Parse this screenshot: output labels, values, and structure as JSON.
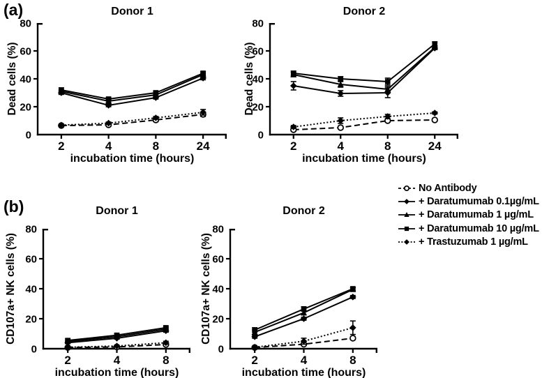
{
  "figure": {
    "panel_a_label": "(a)",
    "panel_b_label": "(b)"
  },
  "colors": {
    "ink": "#000000",
    "background": "#ffffff"
  },
  "legend": {
    "position": "right-middle",
    "items": [
      {
        "label": "No Antibody",
        "marker": "open-circle",
        "line": "dashed"
      },
      {
        "label": "+ Daratumumab 0.1µg/mL",
        "marker": "diamond",
        "line": "solid"
      },
      {
        "label": "+ Daratumumab 1 µg/mL",
        "marker": "triangle",
        "line": "solid"
      },
      {
        "label": "+ Daratumumab 10 µg/mL",
        "marker": "square",
        "line": "solid"
      },
      {
        "label": "+ Trastuzumab 1 µg/mL",
        "marker": "diamond",
        "line": "dotted"
      }
    ]
  },
  "chart_data": [
    {
      "id": "a-donor1",
      "type": "line",
      "panel": "a",
      "title": "Donor 1",
      "xlabel": "incubation time (hours)",
      "ylabel": "Dead cells (%)",
      "categories": [
        "2",
        "4",
        "8",
        "24"
      ],
      "ylim": [
        0,
        80
      ],
      "yticks": [
        0,
        20,
        40,
        60,
        80
      ],
      "grid": false,
      "series": [
        {
          "name": "No Antibody",
          "marker": "open-circle",
          "line": "dashed",
          "values": [
            6.5,
            7,
            10.5,
            14.5
          ],
          "errors": [
            0.5,
            0.8,
            1.2,
            1.5
          ]
        },
        {
          "name": "+ Daratumumab 0.1µg/mL",
          "marker": "diamond",
          "line": "solid",
          "values": [
            30,
            21,
            26.5,
            40.5
          ],
          "errors": [
            1.2,
            1,
            1,
            1.2
          ]
        },
        {
          "name": "+ Daratumumab 1 µg/mL",
          "marker": "triangle",
          "line": "solid",
          "values": [
            31,
            24,
            28.5,
            43
          ],
          "errors": [
            1,
            1,
            1,
            1
          ]
        },
        {
          "name": "+ Daratumumab 10 µg/mL",
          "marker": "square",
          "line": "solid",
          "values": [
            32,
            25.5,
            30,
            44
          ],
          "errors": [
            1.5,
            1,
            1,
            1.2
          ]
        },
        {
          "name": "+ Trastuzumab 1 µg/mL",
          "marker": "diamond",
          "line": "dotted",
          "values": [
            6.8,
            8.2,
            12,
            16
          ],
          "errors": [
            0.5,
            0.8,
            1,
            2
          ]
        }
      ]
    },
    {
      "id": "a-donor2",
      "type": "line",
      "panel": "a",
      "title": "Donor 2",
      "xlabel": "incubation time (hours)",
      "ylabel": "Dead cells (%)",
      "categories": [
        "2",
        "4",
        "8",
        "24"
      ],
      "ylim": [
        0,
        80
      ],
      "yticks": [
        0,
        20,
        40,
        60,
        80
      ],
      "grid": false,
      "series": [
        {
          "name": "No Antibody",
          "marker": "open-circle",
          "line": "dashed",
          "values": [
            3.5,
            5,
            10,
            10.5
          ],
          "errors": [
            1,
            1,
            1,
            0.8
          ]
        },
        {
          "name": "+ Daratumumab 0.1µg/mL",
          "marker": "diamond",
          "line": "solid",
          "values": [
            35,
            29.5,
            30,
            62
          ],
          "errors": [
            3,
            2,
            3.5,
            1
          ]
        },
        {
          "name": "+ Daratumumab 1 µg/mL",
          "marker": "triangle",
          "line": "solid",
          "values": [
            43,
            36,
            32.5,
            62.5
          ],
          "errors": [
            1.5,
            2,
            2,
            1
          ]
        },
        {
          "name": "+ Daratumumab 10 µg/mL",
          "marker": "square",
          "line": "solid",
          "values": [
            44,
            40,
            38,
            65
          ],
          "errors": [
            1.5,
            1.5,
            2.5,
            1.5
          ]
        },
        {
          "name": "+ Trastuzumab 1 µg/mL",
          "marker": "diamond",
          "line": "dotted",
          "values": [
            5.5,
            10,
            13,
            15.5
          ],
          "errors": [
            1,
            2,
            1.5,
            0.8
          ]
        }
      ]
    },
    {
      "id": "b-donor1",
      "type": "line",
      "panel": "b",
      "title": "Donor 1",
      "xlabel": "incubation time (hours)",
      "ylabel": "CD107a+ NK cells (%)",
      "categories": [
        "2",
        "4",
        "8"
      ],
      "ylim": [
        0,
        80
      ],
      "yticks": [
        0,
        20,
        40,
        60,
        80
      ],
      "grid": false,
      "series": [
        {
          "name": "No Antibody",
          "marker": "open-circle",
          "line": "dashed",
          "values": [
            0.8,
            1.2,
            2.8
          ],
          "errors": [
            0.3,
            0.4,
            0.6
          ]
        },
        {
          "name": "+ Daratumumab 0.1µg/mL",
          "marker": "diamond",
          "line": "solid",
          "values": [
            4,
            7,
            12
          ],
          "errors": [
            0.6,
            0.6,
            1
          ]
        },
        {
          "name": "+ Daratumumab 1 µg/mL",
          "marker": "triangle",
          "line": "solid",
          "values": [
            4.8,
            8,
            13
          ],
          "errors": [
            0.6,
            0.8,
            1
          ]
        },
        {
          "name": "+ Daratumumab 10 µg/mL",
          "marker": "square",
          "line": "solid",
          "values": [
            5.5,
            9,
            14
          ],
          "errors": [
            1,
            1,
            1
          ]
        },
        {
          "name": "+ Trastuzumab 1 µg/mL",
          "marker": "diamond",
          "line": "dotted",
          "values": [
            1,
            1.8,
            4
          ],
          "errors": [
            0.4,
            0.5,
            1
          ]
        }
      ]
    },
    {
      "id": "b-donor2",
      "type": "line",
      "panel": "b",
      "title": "Donor 2",
      "xlabel": "incubation time (hours)",
      "ylabel": "CD107a+ NK cells (%)",
      "categories": [
        "2",
        "4",
        "8"
      ],
      "ylim": [
        0,
        80
      ],
      "yticks": [
        0,
        20,
        40,
        60,
        80
      ],
      "grid": false,
      "series": [
        {
          "name": "No Antibody",
          "marker": "open-circle",
          "line": "dashed",
          "values": [
            0.8,
            3,
            7
          ],
          "errors": [
            0.3,
            1,
            1
          ]
        },
        {
          "name": "+ Daratumumab 0.1µg/mL",
          "marker": "diamond",
          "line": "solid",
          "values": [
            8,
            20,
            34.5
          ],
          "errors": [
            1,
            1,
            1
          ]
        },
        {
          "name": "+ Daratumumab 1 µg/mL",
          "marker": "triangle",
          "line": "solid",
          "values": [
            11,
            24,
            39.5
          ],
          "errors": [
            1.5,
            1.5,
            1
          ]
        },
        {
          "name": "+ Daratumumab 10 µg/mL",
          "marker": "square",
          "line": "solid",
          "values": [
            12.5,
            26.5,
            40
          ],
          "errors": [
            1.5,
            1.5,
            1
          ]
        },
        {
          "name": "+ Trastuzumab 1 µg/mL",
          "marker": "diamond",
          "line": "dotted",
          "values": [
            1,
            5,
            14
          ],
          "errors": [
            0.5,
            2,
            4.5
          ]
        }
      ]
    }
  ]
}
